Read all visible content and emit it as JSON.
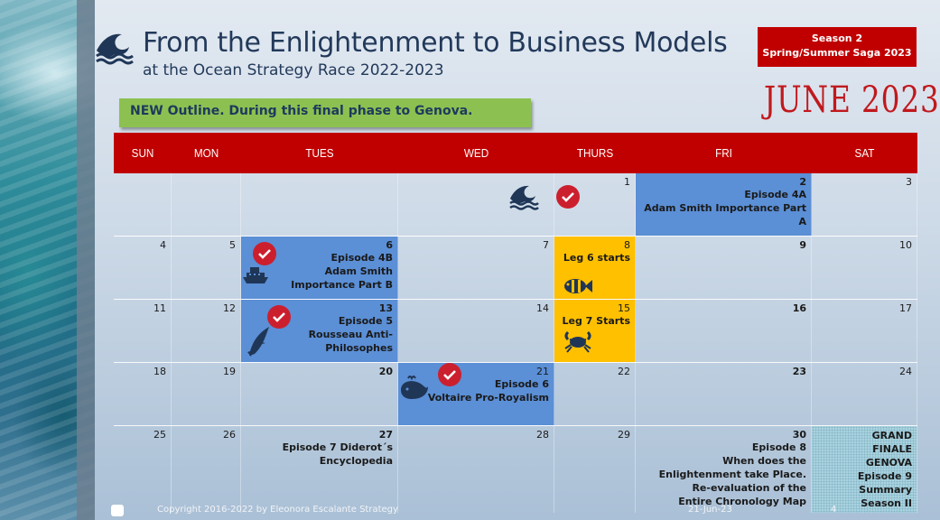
{
  "header": {
    "title": "From the Enlightenment to Business Models",
    "subtitle": "at the Ocean Strategy Race 2022-2023",
    "icon": "wave-icon"
  },
  "season": {
    "line1": "Season 2",
    "line2": "Spring/Summer Saga 2023"
  },
  "month_label": "JUNE 2023",
  "outline_note": "NEW Outline. During this final phase to Genova.",
  "days_of_week": [
    "SUN",
    "MON",
    "TUES",
    "WED",
    "THURS",
    "FRI",
    "SAT"
  ],
  "weeks": [
    {
      "days": [
        {
          "num": ""
        },
        {
          "num": ""
        },
        {
          "num": ""
        },
        {
          "num": ""
        },
        {
          "num": "1"
        },
        {
          "num": "2",
          "lines": [
            "Episode 4A",
            "Adam Smith Importance Part A"
          ]
        },
        {
          "num": "3"
        }
      ]
    },
    {
      "days": [
        {
          "num": "4"
        },
        {
          "num": "5"
        },
        {
          "num": "6",
          "lines": [
            "Episode 4B",
            "Adam Smith Importance Part B"
          ]
        },
        {
          "num": "7"
        },
        {
          "num": "8",
          "lines": [
            "Leg 6 starts"
          ]
        },
        {
          "num": "9"
        },
        {
          "num": "10"
        }
      ]
    },
    {
      "days": [
        {
          "num": "11"
        },
        {
          "num": "12"
        },
        {
          "num": "13",
          "lines": [
            "Episode 5",
            "Rousseau Anti-Philosophes"
          ]
        },
        {
          "num": "14"
        },
        {
          "num": "15",
          "lines": [
            "Leg 7 Starts"
          ]
        },
        {
          "num": "16"
        },
        {
          "num": "17"
        }
      ]
    },
    {
      "days": [
        {
          "num": "18"
        },
        {
          "num": "19"
        },
        {
          "num": "20"
        },
        {
          "num": "21",
          "lines": [
            "Episode 6",
            "Voltaire Pro-Royalism"
          ]
        },
        {
          "num": "22"
        },
        {
          "num": "23"
        },
        {
          "num": "24"
        }
      ]
    },
    {
      "days": [
        {
          "num": "25"
        },
        {
          "num": "26"
        },
        {
          "num": "27",
          "lines": [
            "Episode 7 Diderot´s Encyclopedia"
          ]
        },
        {
          "num": "28"
        },
        {
          "num": "29"
        },
        {
          "num": "30",
          "lines": [
            "Episode 8",
            "When does the Enlightenment take Place. Re-evaluation of the Entire Chronology Map"
          ]
        },
        {
          "num": "",
          "lines": [
            "GRAND FINALE GENOVA",
            "Episode 9 Summary",
            "Season II"
          ]
        }
      ]
    }
  ],
  "footer": {
    "copyright": "Copyright 2016-2022 by Eleonora Escalante Strategy",
    "date": "21-Jun-23",
    "page": "4"
  },
  "colors": {
    "header_red": "#c00000",
    "episode_blue": "#5b8fd6",
    "leg_yellow": "#ffc000",
    "outline_green": "#8cc152",
    "finale_teal": "#a9d2df"
  }
}
